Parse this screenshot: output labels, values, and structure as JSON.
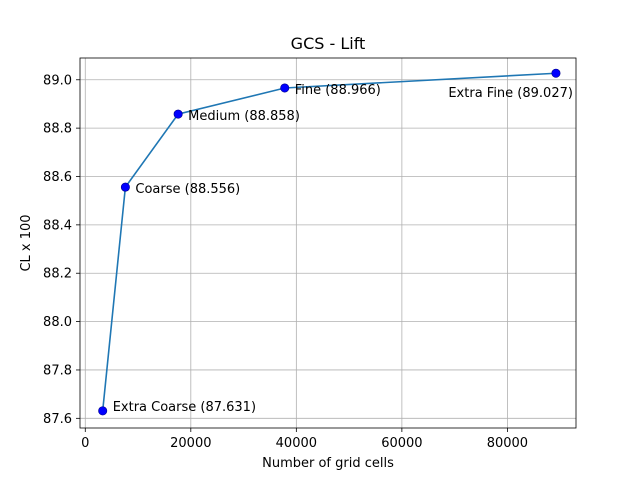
{
  "chart_data": {
    "type": "line",
    "title": "GCS - Lift",
    "xlabel": "Number of grid cells",
    "ylabel": "CL x 100",
    "xlim": [
      -1000,
      93000
    ],
    "ylim": [
      87.56,
      89.09
    ],
    "xticks": [
      0,
      20000,
      40000,
      60000,
      80000
    ],
    "yticks": [
      87.6,
      87.8,
      88.0,
      88.2,
      88.4,
      88.6,
      88.8,
      89.0
    ],
    "xtick_labels": [
      "0",
      "20000",
      "40000",
      "60000",
      "80000"
    ],
    "ytick_labels": [
      "87.6",
      "87.8",
      "88.0",
      "88.2",
      "88.4",
      "88.6",
      "88.8",
      "89.0"
    ],
    "grid": true,
    "line_color": "#1f77b4",
    "marker_color": "#0000ff",
    "points": [
      {
        "x": 3300,
        "y": 87.631,
        "label": "Extra Coarse (87.631)"
      },
      {
        "x": 7600,
        "y": 88.556,
        "label": "Coarse (88.556)"
      },
      {
        "x": 17600,
        "y": 88.858,
        "label": "Medium (88.858)"
      },
      {
        "x": 37800,
        "y": 88.966,
        "label": "Fine (88.966)"
      },
      {
        "x": 89200,
        "y": 89.027,
        "label": "Extra Fine (89.027)"
      }
    ]
  }
}
